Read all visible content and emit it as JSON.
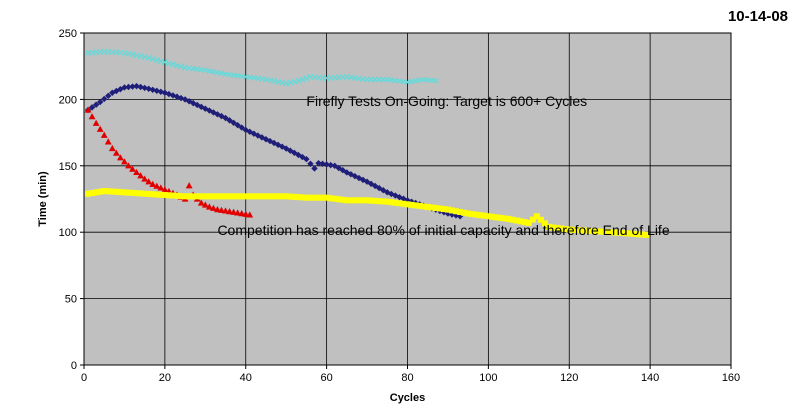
{
  "date_label": "10-14-08",
  "chart_data": {
    "type": "scatter",
    "title": "",
    "xlabel": "Cycles",
    "ylabel": "Time (min)",
    "xlim": [
      0,
      160
    ],
    "ylim": [
      0,
      250
    ],
    "x_ticks": [
      0,
      20,
      40,
      60,
      80,
      100,
      120,
      140,
      160
    ],
    "y_ticks": [
      0,
      50,
      100,
      150,
      200,
      250
    ],
    "grid": true,
    "legend": "none",
    "plot_background": "#c0c0c0",
    "annotations": [
      {
        "text": "Firefly Tests On-Going:  Target is 600+ Cycles",
        "x": 55,
        "y": 195
      },
      {
        "text": "Competition has reached 80% of initial capacity and therefore End of Life",
        "x": 33,
        "y": 98
      }
    ],
    "series": [
      {
        "color": "#66d9d9",
        "marker": "x",
        "points": [
          [
            1,
            235
          ],
          [
            5,
            236
          ],
          [
            10,
            235
          ],
          [
            15,
            232
          ],
          [
            20,
            228
          ],
          [
            25,
            224
          ],
          [
            30,
            222
          ],
          [
            35,
            219
          ],
          [
            40,
            217
          ],
          [
            45,
            215
          ],
          [
            50,
            212
          ],
          [
            53,
            214
          ],
          [
            56,
            217
          ],
          [
            60,
            216
          ],
          [
            65,
            217
          ],
          [
            70,
            215
          ],
          [
            75,
            215
          ],
          [
            80,
            213
          ],
          [
            84,
            215
          ],
          [
            87,
            214
          ]
        ]
      },
      {
        "color": "#1f1f7a",
        "marker": "diamond",
        "points": [
          [
            1,
            192
          ],
          [
            4,
            198
          ],
          [
            7,
            205
          ],
          [
            10,
            209
          ],
          [
            13,
            210
          ],
          [
            16,
            208
          ],
          [
            20,
            205
          ],
          [
            25,
            200
          ],
          [
            30,
            193
          ],
          [
            35,
            186
          ],
          [
            40,
            177
          ],
          [
            45,
            170
          ],
          [
            50,
            163
          ],
          [
            55,
            155
          ],
          [
            57,
            148
          ],
          [
            58,
            152
          ],
          [
            62,
            150
          ],
          [
            65,
            145
          ],
          [
            70,
            138
          ],
          [
            75,
            130
          ],
          [
            80,
            124
          ],
          [
            85,
            119
          ],
          [
            90,
            114
          ],
          [
            93,
            112
          ]
        ]
      },
      {
        "color": "#e00000",
        "marker": "triangle",
        "points": [
          [
            1,
            192
          ],
          [
            3,
            182
          ],
          [
            5,
            173
          ],
          [
            7,
            163
          ],
          [
            9,
            156
          ],
          [
            11,
            150
          ],
          [
            13,
            145
          ],
          [
            15,
            140
          ],
          [
            17,
            136
          ],
          [
            20,
            132
          ],
          [
            23,
            128
          ],
          [
            25,
            125
          ],
          [
            26,
            135
          ],
          [
            27,
            128
          ],
          [
            29,
            122
          ],
          [
            31,
            119
          ],
          [
            33,
            117
          ],
          [
            35,
            116
          ],
          [
            37,
            115
          ],
          [
            39,
            114
          ],
          [
            41,
            113
          ]
        ]
      },
      {
        "color": "#ffff00",
        "marker": "square",
        "points": [
          [
            1,
            129
          ],
          [
            5,
            131
          ],
          [
            10,
            130
          ],
          [
            15,
            129
          ],
          [
            20,
            128
          ],
          [
            25,
            127
          ],
          [
            30,
            127
          ],
          [
            35,
            127
          ],
          [
            40,
            127
          ],
          [
            45,
            127
          ],
          [
            50,
            127
          ],
          [
            55,
            126
          ],
          [
            60,
            126
          ],
          [
            65,
            124
          ],
          [
            70,
            124
          ],
          [
            75,
            123
          ],
          [
            80,
            121
          ],
          [
            85,
            119
          ],
          [
            90,
            117
          ],
          [
            95,
            114
          ],
          [
            100,
            112
          ],
          [
            105,
            110
          ],
          [
            110,
            107
          ],
          [
            112,
            112
          ],
          [
            115,
            104
          ],
          [
            120,
            102
          ],
          [
            125,
            101
          ],
          [
            130,
            100
          ],
          [
            135,
            99
          ],
          [
            139,
            98
          ]
        ]
      }
    ]
  }
}
